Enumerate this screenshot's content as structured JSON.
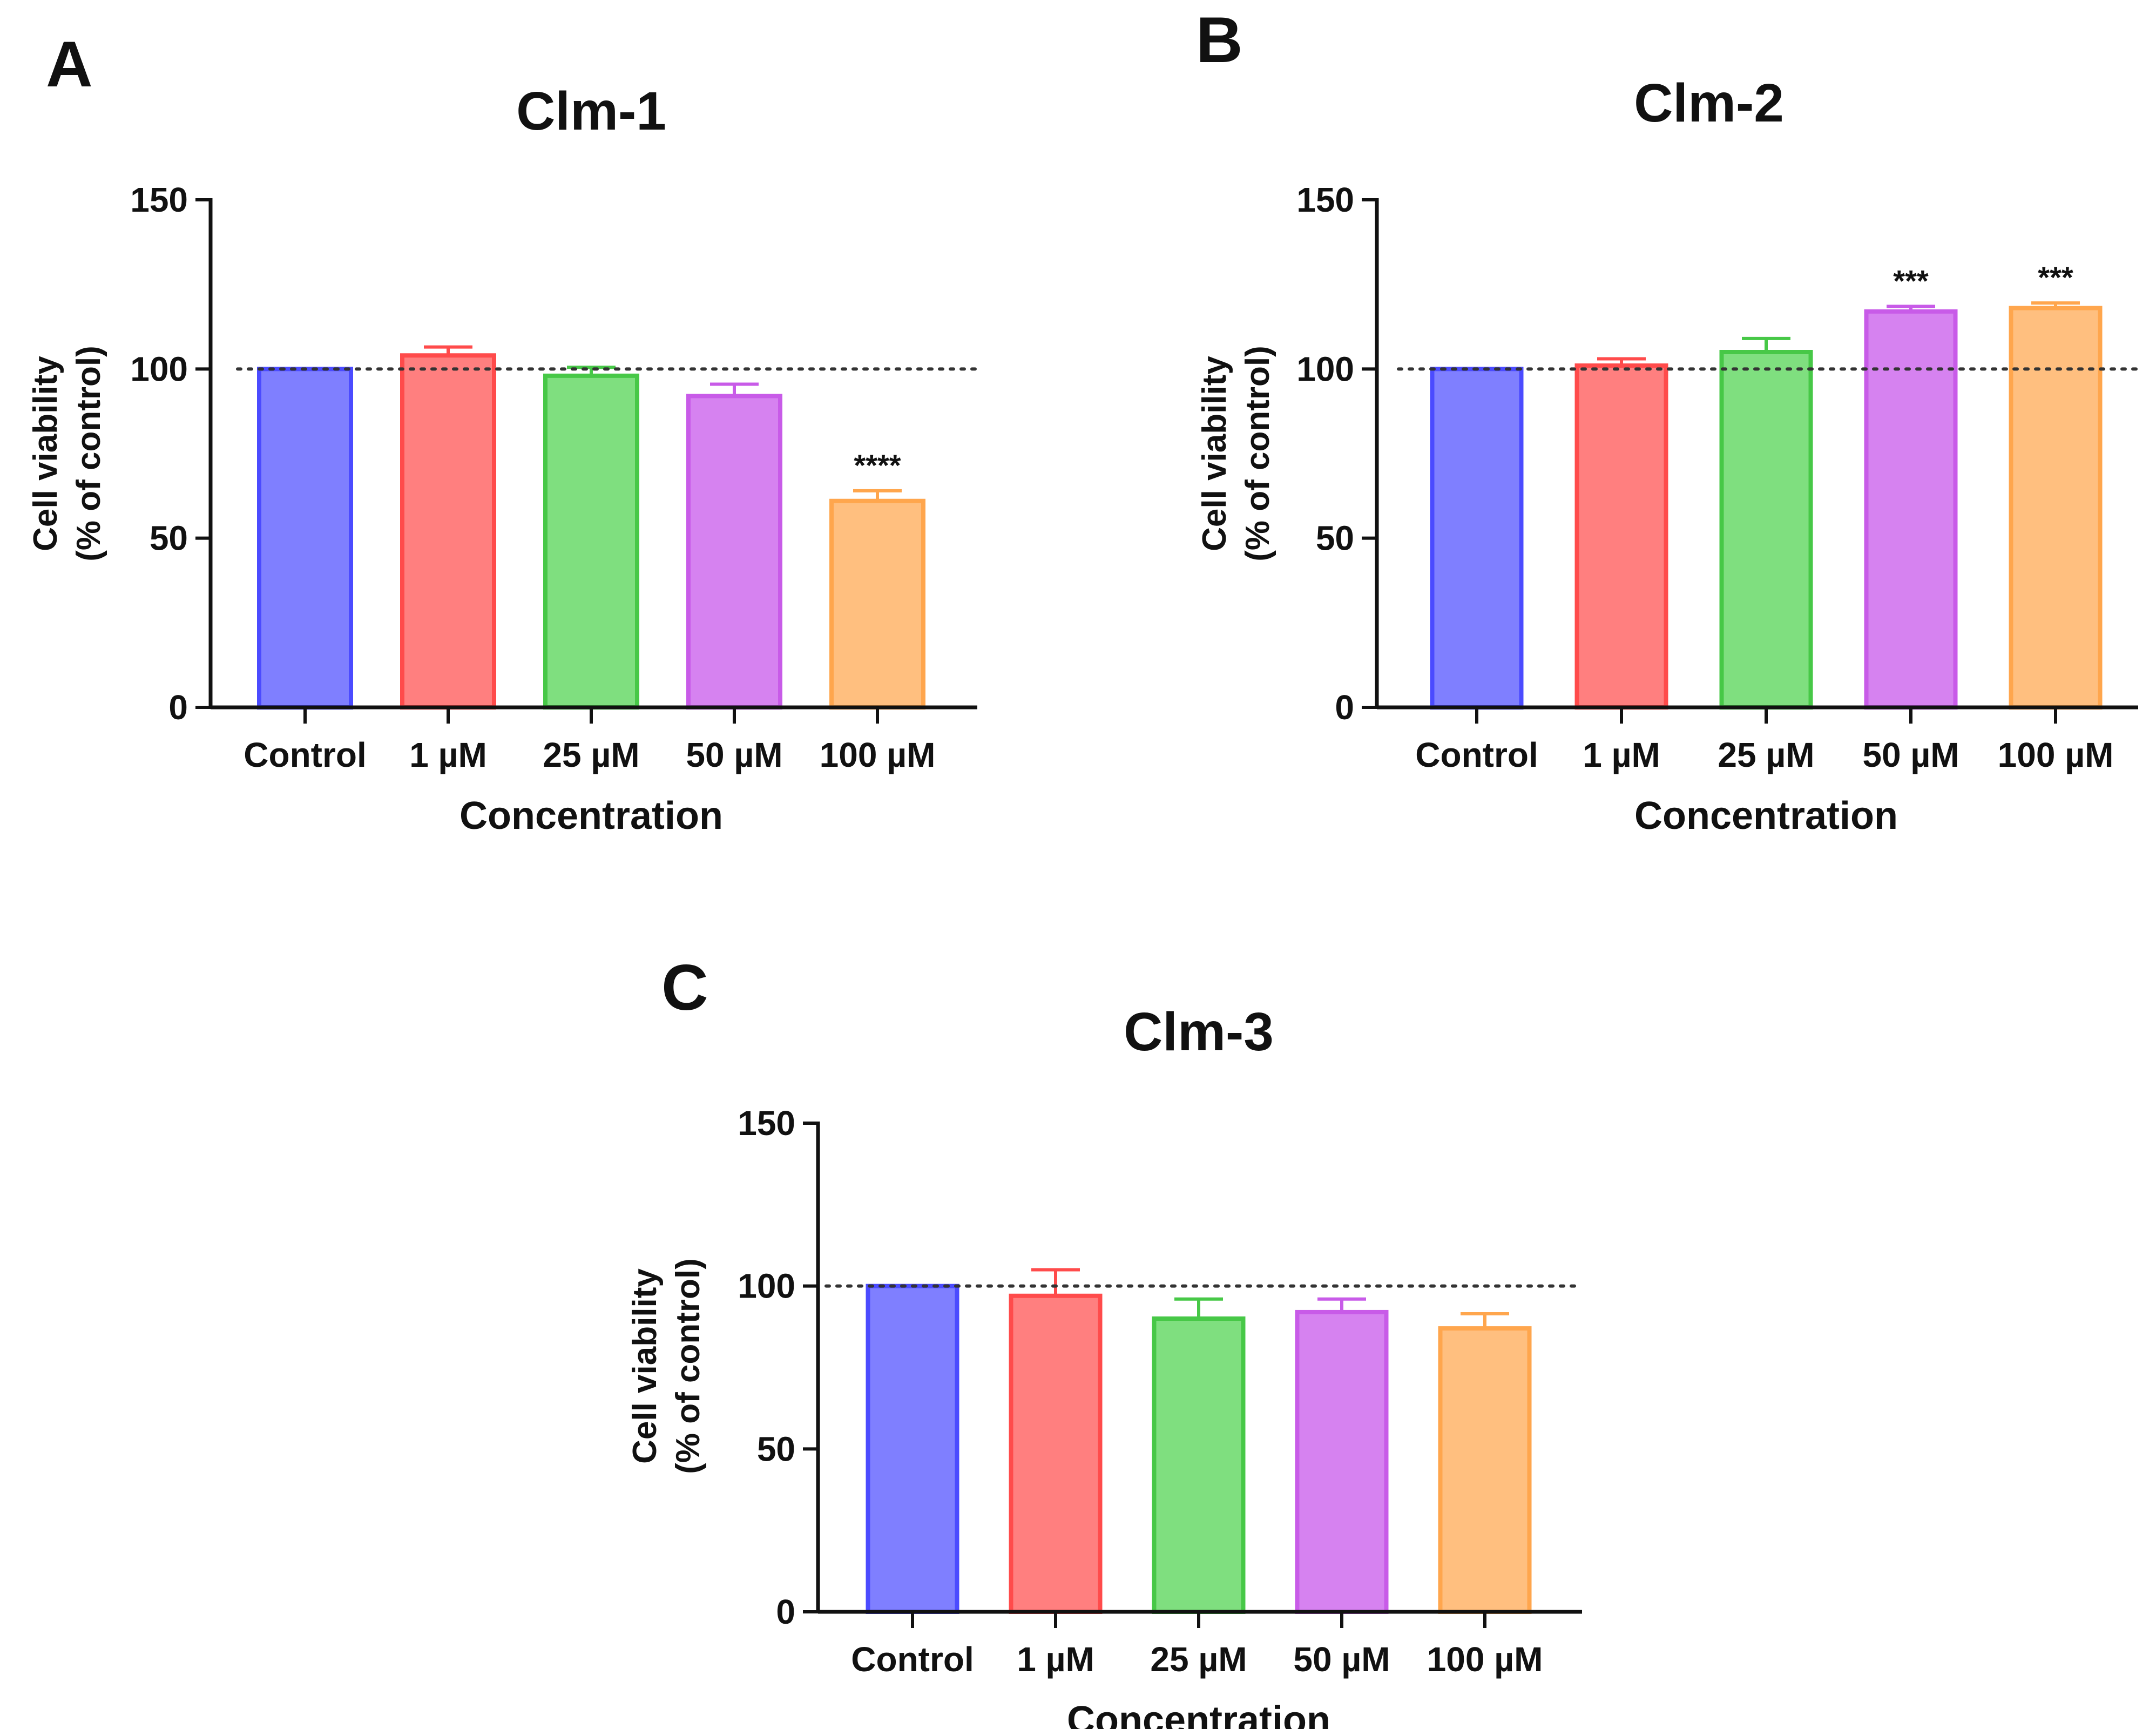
{
  "panels": [
    {
      "letter": "A"
    },
    {
      "letter": "B"
    },
    {
      "letter": "C"
    }
  ],
  "chart_data": [
    {
      "type": "bar",
      "title": "Clm-1",
      "xlabel": "Concentration",
      "ylabel_line1": "Cell viability",
      "ylabel_line2": "(%  of control)",
      "ylim": [
        0,
        150
      ],
      "yticks": [
        0,
        50,
        100,
        150
      ],
      "reference_line": 100,
      "categories": [
        "Control",
        "1 µM",
        "25 µM",
        "50 µM",
        "100 µM"
      ],
      "values": [
        100,
        104,
        98,
        92,
        61
      ],
      "errors": [
        0,
        2.5,
        2.5,
        3.5,
        3
      ],
      "significance": [
        "",
        "",
        "",
        "",
        "****"
      ],
      "colors": [
        "#7f7fff",
        "#ff7f7f",
        "#7fdf7f",
        "#d682f0",
        "#ffbf7f"
      ],
      "edge_colors": [
        "#4b4bff",
        "#ff4b4b",
        "#47c847",
        "#c85be8",
        "#ffa64d"
      ]
    },
    {
      "type": "bar",
      "title": "Clm-2",
      "xlabel": "Concentration",
      "ylabel_line1": "Cell viability",
      "ylabel_line2": "(%  of control)",
      "ylim": [
        0,
        150
      ],
      "yticks": [
        0,
        50,
        100,
        150
      ],
      "reference_line": 100,
      "categories": [
        "Control",
        "1 µM",
        "25 µM",
        "50 µM",
        "100 µM"
      ],
      "values": [
        100,
        101,
        105,
        117,
        118
      ],
      "errors": [
        0,
        2,
        4,
        1.5,
        1.5
      ],
      "significance": [
        "",
        "",
        "",
        "***",
        "***"
      ],
      "colors": [
        "#7f7fff",
        "#ff7f7f",
        "#7fdf7f",
        "#d682f0",
        "#ffbf7f"
      ],
      "edge_colors": [
        "#4b4bff",
        "#ff4b4b",
        "#47c847",
        "#c85be8",
        "#ffa64d"
      ]
    },
    {
      "type": "bar",
      "title": "Clm-3",
      "xlabel": "Concentration",
      "ylabel_line1": "Cell viability",
      "ylabel_line2": "(%  of control)",
      "ylim": [
        0,
        150
      ],
      "yticks": [
        0,
        50,
        100,
        150
      ],
      "reference_line": 100,
      "categories": [
        "Control",
        "1 µM",
        "25 µM",
        "50 µM",
        "100 µM"
      ],
      "values": [
        100,
        97,
        90,
        92,
        87
      ],
      "errors": [
        0,
        8,
        6,
        4,
        4.5
      ],
      "significance": [
        "",
        "",
        "",
        "",
        ""
      ],
      "colors": [
        "#7f7fff",
        "#ff7f7f",
        "#7fdf7f",
        "#d682f0",
        "#ffbf7f"
      ],
      "edge_colors": [
        "#4b4bff",
        "#ff4b4b",
        "#47c847",
        "#c85be8",
        "#ffa64d"
      ]
    }
  ]
}
